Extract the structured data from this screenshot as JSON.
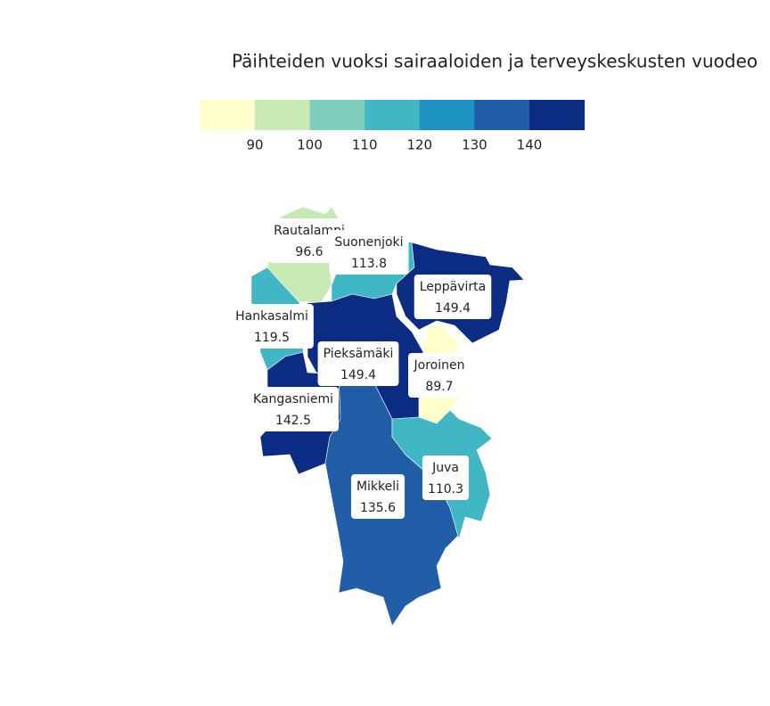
{
  "chart_data": {
    "type": "choropleth",
    "title": "Päihteiden vuoksi sairaaloiden ja terveyskeskusten vuodeo",
    "legend": {
      "colors": [
        "#ffffcc",
        "#c7e9b4",
        "#7fcdbb",
        "#41b6c4",
        "#1d91c0",
        "#225ea8",
        "#0c2c84"
      ],
      "ticks": [
        90,
        100,
        110,
        120,
        130,
        140
      ]
    },
    "regions": [
      {
        "name": "Rautalampi",
        "value": 96.6
      },
      {
        "name": "Suonenjoki",
        "value": 113.8
      },
      {
        "name": "Leppävirta",
        "value": 149.4
      },
      {
        "name": "Joroinen",
        "value": 89.7
      },
      {
        "name": "Hankasalmi",
        "value": 119.5
      },
      {
        "name": "Pieksämäki",
        "value": 149.4
      },
      {
        "name": "Kangasniemi",
        "value": 142.5
      },
      {
        "name": "Mikkeli",
        "value": 135.6
      },
      {
        "name": "Juva",
        "value": 110.3
      }
    ]
  }
}
